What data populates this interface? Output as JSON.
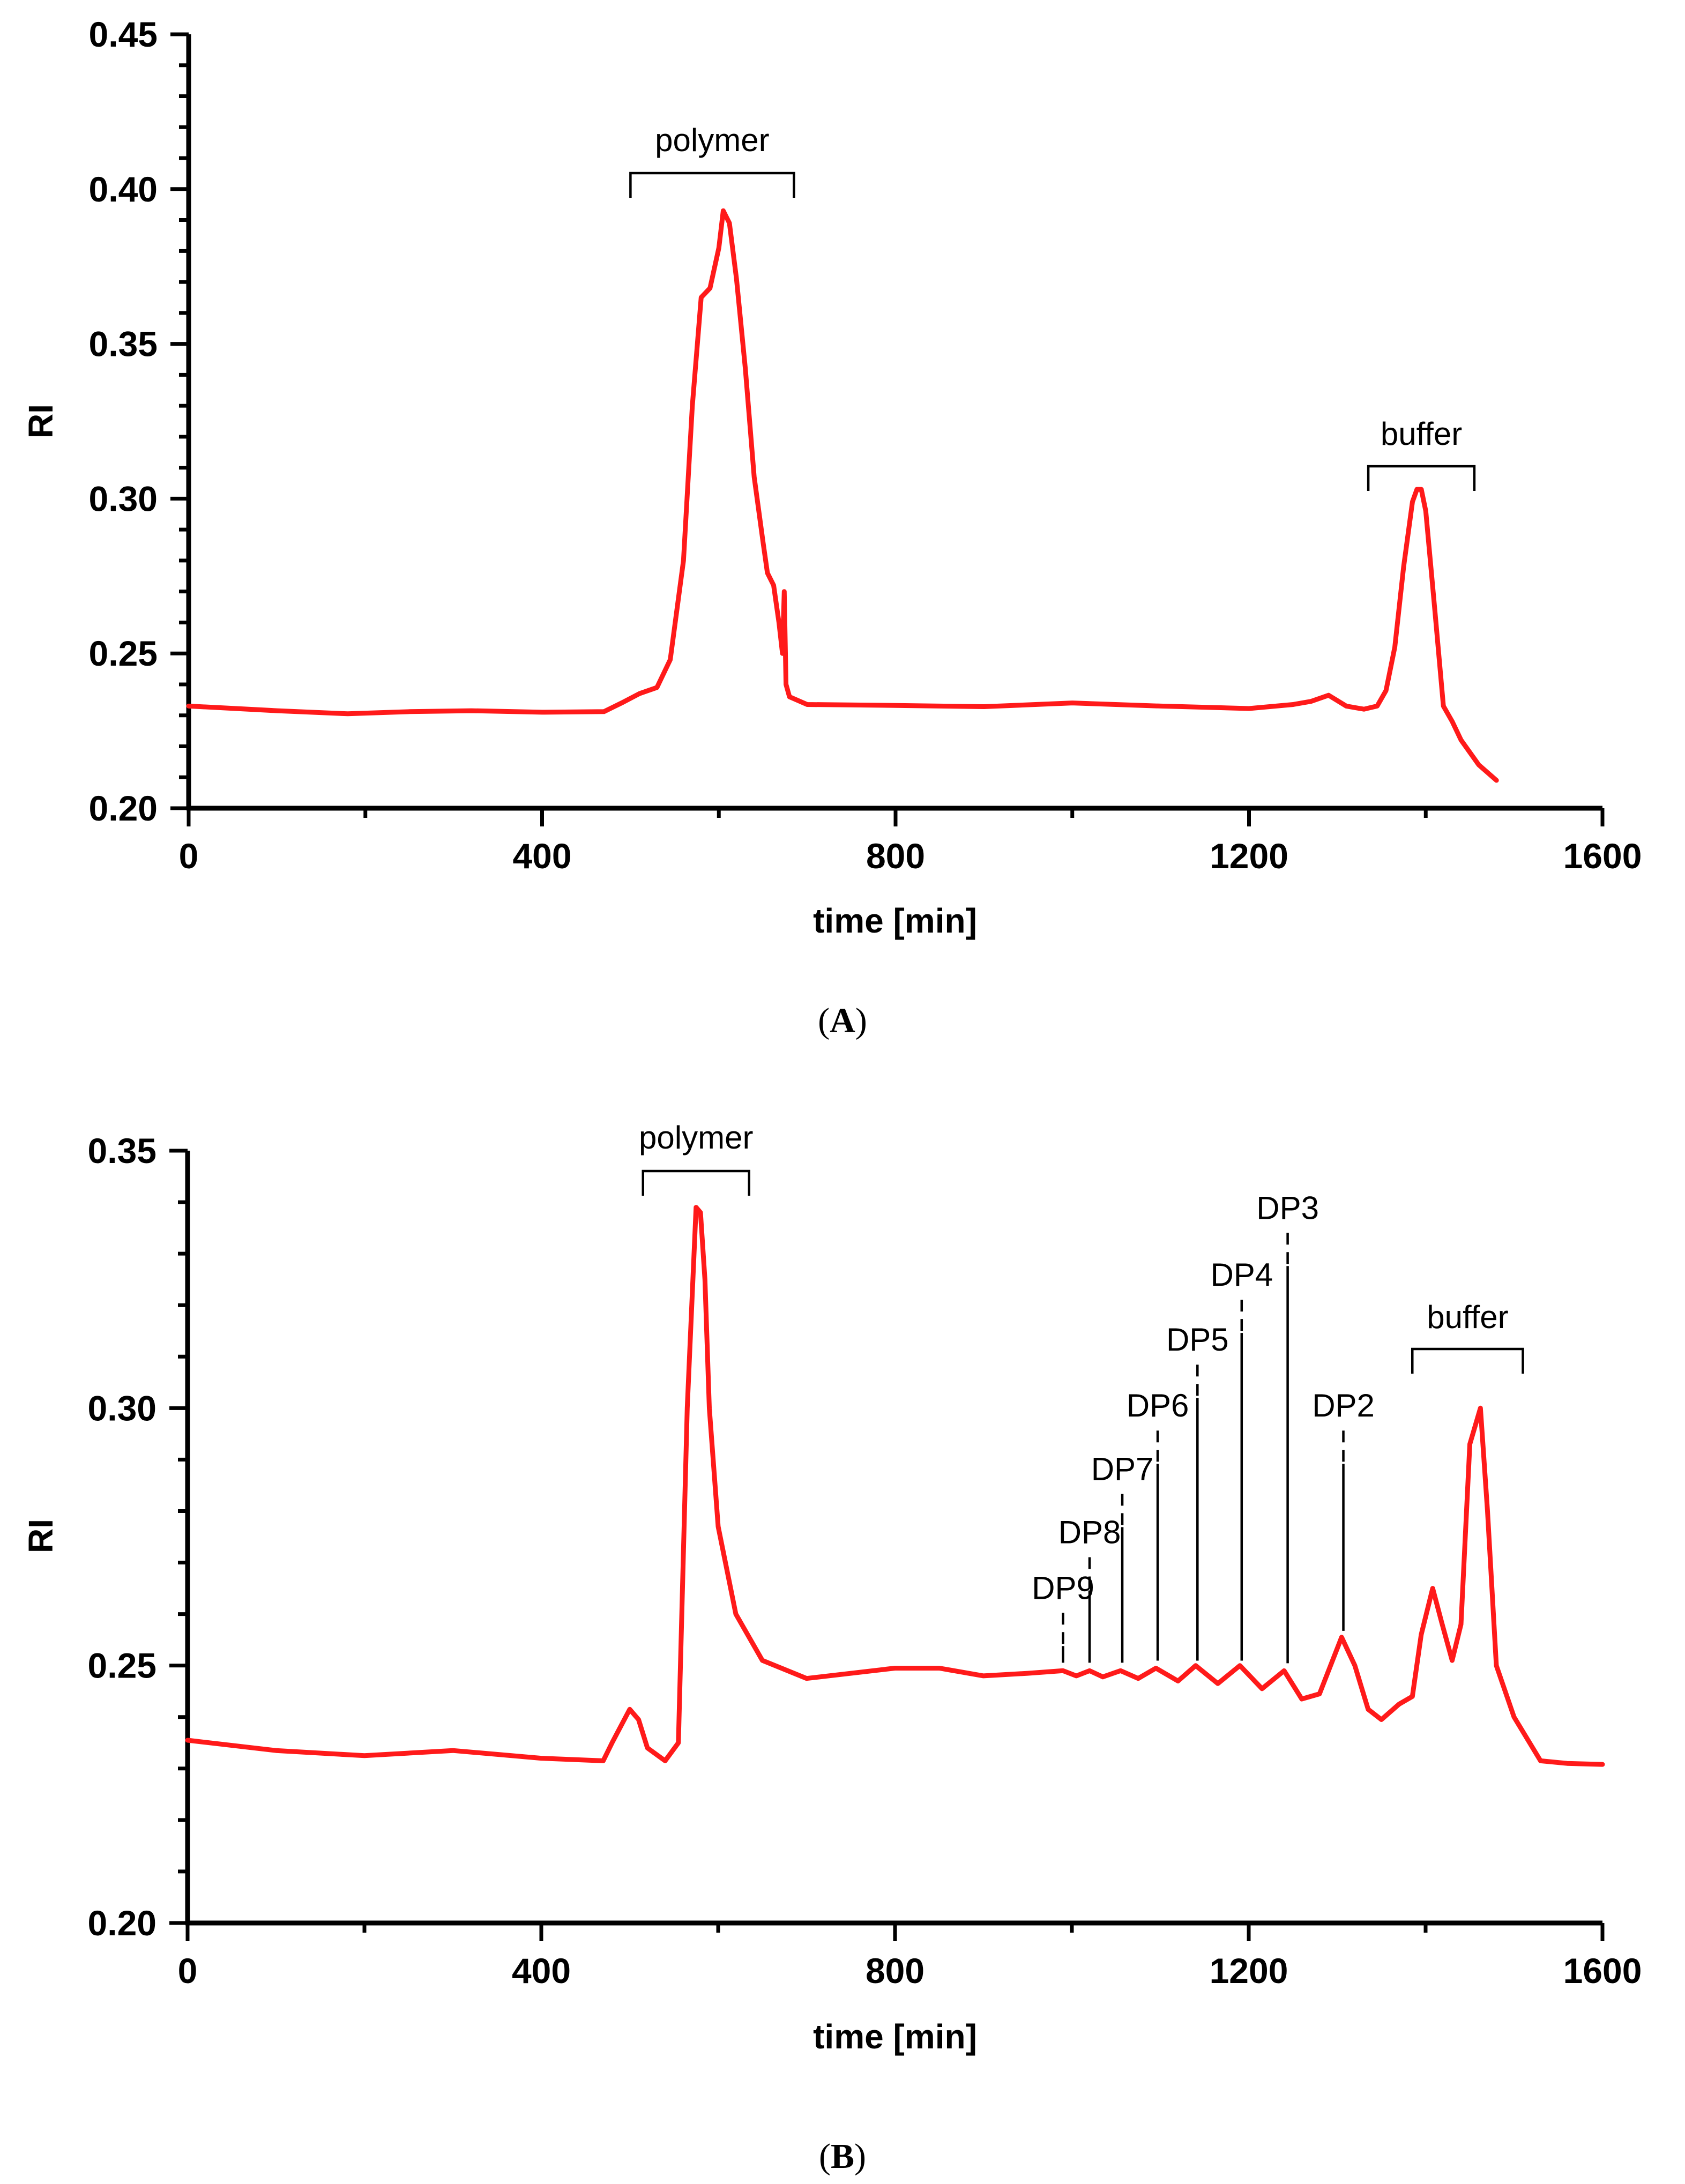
{
  "chart_data": [
    {
      "type": "line",
      "panel_label": "A",
      "xlabel": "time [min]",
      "ylabel": "RI",
      "xlim": [
        0,
        1600
      ],
      "ylim": [
        0.2,
        0.45
      ],
      "xticks": [
        0,
        400,
        800,
        1200,
        1600
      ],
      "xtick_labels": [
        "0",
        "400",
        "800",
        "1200",
        "1600"
      ],
      "yticks": [
        0.2,
        0.25,
        0.3,
        0.35,
        0.4,
        0.45
      ],
      "ytick_labels": [
        "0.20",
        "0.25",
        "0.30",
        "0.35",
        "0.40",
        "0.45"
      ],
      "grid": false,
      "series": [
        {
          "color": "#ff1a1a",
          "x": [
            0,
            100,
            180,
            250,
            320,
            400,
            470,
            490,
            510,
            530,
            545,
            560,
            570,
            580,
            590,
            600,
            605,
            612,
            620,
            630,
            640,
            650,
            655,
            662,
            668,
            672,
            674,
            676,
            680,
            700,
            800,
            900,
            1000,
            1100,
            1200,
            1250,
            1270,
            1290,
            1310,
            1330,
            1345,
            1355,
            1365,
            1375,
            1385,
            1390,
            1395,
            1400,
            1410,
            1420,
            1430,
            1440,
            1460,
            1480
          ],
          "y": [
            0.233,
            0.2315,
            0.2305,
            0.2312,
            0.2315,
            0.231,
            0.2312,
            0.234,
            0.237,
            0.239,
            0.248,
            0.28,
            0.33,
            0.365,
            0.368,
            0.381,
            0.393,
            0.389,
            0.371,
            0.342,
            0.307,
            0.286,
            0.276,
            0.272,
            0.26,
            0.25,
            0.27,
            0.24,
            0.236,
            0.2335,
            0.2332,
            0.2328,
            0.234,
            0.233,
            0.2322,
            0.2335,
            0.2345,
            0.2365,
            0.233,
            0.232,
            0.233,
            0.238,
            0.252,
            0.278,
            0.299,
            0.303,
            0.303,
            0.296,
            0.265,
            0.233,
            0.228,
            0.222,
            0.214,
            0.209
          ]
        }
      ],
      "annotations": [
        {
          "text": "polymer",
          "x_start": 500,
          "x_end": 685
        },
        {
          "text": "buffer",
          "x_start": 1335,
          "x_end": 1455
        }
      ]
    },
    {
      "type": "line",
      "panel_label": "B",
      "xlabel": "time [min]",
      "ylabel": "RI",
      "xlim": [
        0,
        1600
      ],
      "ylim": [
        0.2,
        0.35
      ],
      "xticks": [
        0,
        400,
        800,
        1200,
        1600
      ],
      "xtick_labels": [
        "0",
        "400",
        "800",
        "1200",
        "1600"
      ],
      "yticks": [
        0.2,
        0.25,
        0.3,
        0.35
      ],
      "ytick_labels": [
        "0.20",
        "0.25",
        "0.30",
        "0.35"
      ],
      "grid": false,
      "series": [
        {
          "color": "#ff1a1a",
          "x": [
            0,
            100,
            200,
            300,
            400,
            470,
            480,
            500,
            510,
            520,
            540,
            555,
            565,
            575,
            580,
            585,
            590,
            600,
            620,
            650,
            700,
            800,
            850,
            900,
            950,
            990,
            1005,
            1020,
            1035,
            1055,
            1075,
            1095,
            1120,
            1140,
            1165,
            1190,
            1215,
            1240,
            1260,
            1280,
            1305,
            1320,
            1335,
            1350,
            1370,
            1385,
            1395,
            1408,
            1418,
            1430,
            1440,
            1450,
            1462,
            1470,
            1480,
            1500,
            1530,
            1560,
            1600
          ],
          "y": [
            0.2355,
            0.2335,
            0.2325,
            0.2335,
            0.232,
            0.2315,
            0.235,
            0.2415,
            0.2395,
            0.234,
            0.2315,
            0.235,
            0.3,
            0.339,
            0.338,
            0.325,
            0.3,
            0.277,
            0.26,
            0.251,
            0.2475,
            0.2495,
            0.2495,
            0.248,
            0.2485,
            0.249,
            0.248,
            0.249,
            0.2478,
            0.249,
            0.2475,
            0.2495,
            0.247,
            0.25,
            0.2465,
            0.25,
            0.2455,
            0.249,
            0.2435,
            0.2445,
            0.2555,
            0.25,
            0.2415,
            0.2395,
            0.2425,
            0.244,
            0.256,
            0.265,
            0.2585,
            0.251,
            0.258,
            0.293,
            0.3,
            0.28,
            0.25,
            0.24,
            0.2315,
            0.231,
            0.2308
          ]
        }
      ],
      "annotations": [
        {
          "text": "polymer",
          "x_start": 515,
          "x_end": 635
        },
        {
          "text": "buffer",
          "x_start": 1385,
          "x_end": 1510
        }
      ],
      "peak_labels": [
        {
          "text": "DP9",
          "x": 990,
          "y": 0.2493,
          "label_y": 0.2617
        },
        {
          "text": "DP8",
          "x": 1020,
          "y": 0.2493,
          "label_y": 0.2725
        },
        {
          "text": "DP7",
          "x": 1057,
          "y": 0.2493,
          "label_y": 0.2848
        },
        {
          "text": "DP6",
          "x": 1097,
          "y": 0.2497,
          "label_y": 0.2971
        },
        {
          "text": "DP5",
          "x": 1142,
          "y": 0.2497,
          "label_y": 0.3099
        },
        {
          "text": "DP4",
          "x": 1192,
          "y": 0.2497,
          "label_y": 0.3225
        },
        {
          "text": "DP3",
          "x": 1244,
          "y": 0.2492,
          "label_y": 0.3355
        },
        {
          "text": "DP2",
          "x": 1307,
          "y": 0.2555,
          "label_y": 0.2971
        }
      ]
    }
  ]
}
